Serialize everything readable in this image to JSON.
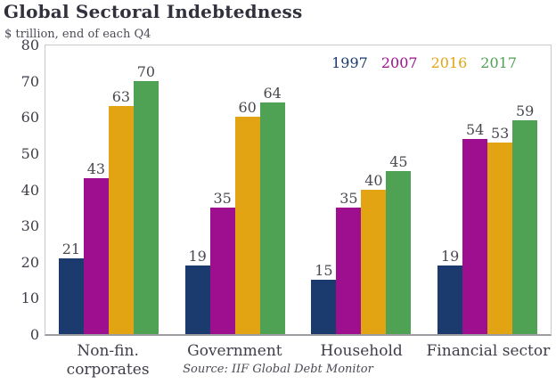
{
  "title": "Global Sectoral Indebtedness",
  "subtitle": "$ trillion, end of each Q4",
  "source": "Source: IIF Global Debt Monitor",
  "chart_data": {
    "type": "bar",
    "title": "Global Sectoral Indebtedness",
    "subtitle": "$ trillion, end of each Q4",
    "categories": [
      "Non-fin. corporates",
      "Government",
      "Household",
      "Financial sector"
    ],
    "category_label_lines": [
      [
        "Non-fin.",
        "corporates"
      ],
      [
        "Government"
      ],
      [
        "Household"
      ],
      [
        "Financial sector"
      ]
    ],
    "series": [
      {
        "name": "1997",
        "color": "#1b3a6d",
        "values": [
          21,
          19,
          15,
          19
        ]
      },
      {
        "name": "2007",
        "color": "#9e0f8f",
        "values": [
          43,
          35,
          35,
          54
        ]
      },
      {
        "name": "2016",
        "color": "#e2a412",
        "values": [
          63,
          60,
          40,
          53
        ]
      },
      {
        "name": "2017",
        "color": "#4fa254",
        "values": [
          70,
          64,
          45,
          59
        ]
      }
    ],
    "yticks": [
      0,
      10,
      20,
      30,
      40,
      50,
      60,
      70,
      80
    ],
    "ylim": [
      0,
      80
    ],
    "xlabel": "",
    "ylabel": "",
    "grid": false,
    "legend_position": "top-right",
    "source": "Source: IIF Global Debt Monitor"
  }
}
